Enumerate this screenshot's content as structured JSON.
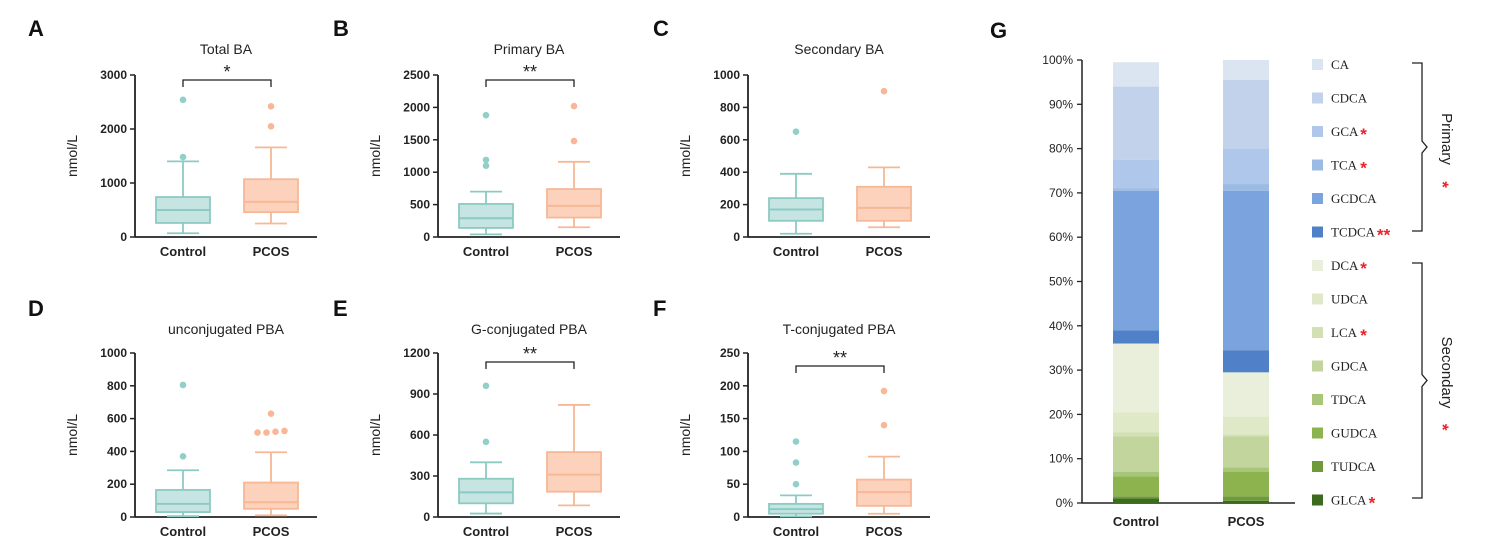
{
  "chart_data": [
    {
      "panel": "A",
      "type": "box",
      "title": "Total  BA",
      "ylabel": "nmol/L",
      "ylim": [
        0,
        3000
      ],
      "yticks": [
        0,
        1000,
        2000,
        3000
      ],
      "categories": [
        "Control",
        "PCOS"
      ],
      "boxes": [
        {
          "q1": 260,
          "median": 500,
          "q3": 740,
          "whisker_low": 70,
          "whisker_high": 1400,
          "outliers": [
            1480,
            2540
          ]
        },
        {
          "q1": 460,
          "median": 650,
          "q3": 1070,
          "whisker_low": 250,
          "whisker_high": 1660,
          "outliers": [
            2050,
            2420
          ]
        }
      ],
      "significance": "*"
    },
    {
      "panel": "B",
      "type": "box",
      "title": "Primary  BA",
      "ylabel": "nmol/L",
      "ylim": [
        0,
        2500
      ],
      "yticks": [
        0,
        500,
        1000,
        1500,
        2000,
        2500
      ],
      "categories": [
        "Control",
        "PCOS"
      ],
      "boxes": [
        {
          "q1": 140,
          "median": 290,
          "q3": 510,
          "whisker_low": 40,
          "whisker_high": 700,
          "outliers": [
            1100,
            1190,
            1880
          ]
        },
        {
          "q1": 300,
          "median": 480,
          "q3": 740,
          "whisker_low": 150,
          "whisker_high": 1160,
          "outliers": [
            1480,
            2020
          ]
        }
      ],
      "significance": "**"
    },
    {
      "panel": "C",
      "type": "box",
      "title": "Secondary  BA",
      "ylabel": "nmol/L",
      "ylim": [
        0,
        1000
      ],
      "yticks": [
        0,
        200,
        400,
        600,
        800,
        1000
      ],
      "categories": [
        "Control",
        "PCOS"
      ],
      "boxes": [
        {
          "q1": 100,
          "median": 170,
          "q3": 240,
          "whisker_low": 20,
          "whisker_high": 390,
          "outliers": [
            650
          ]
        },
        {
          "q1": 100,
          "median": 180,
          "q3": 310,
          "whisker_low": 60,
          "whisker_high": 430,
          "outliers": [
            900
          ]
        }
      ],
      "significance": ""
    },
    {
      "panel": "D",
      "type": "box",
      "title": "unconjugated  PBA",
      "ylabel": "nmol/L",
      "ylim": [
        0,
        1000
      ],
      "yticks": [
        0,
        200,
        400,
        600,
        800,
        1000
      ],
      "categories": [
        "Control",
        "PCOS"
      ],
      "boxes": [
        {
          "q1": 30,
          "median": 80,
          "q3": 165,
          "whisker_low": 5,
          "whisker_high": 285,
          "outliers": [
            370,
            805
          ]
        },
        {
          "q1": 50,
          "median": 90,
          "q3": 210,
          "whisker_low": 10,
          "whisker_high": 395,
          "outliers": [
            515,
            515,
            520,
            525,
            630
          ]
        }
      ],
      "significance": ""
    },
    {
      "panel": "E",
      "type": "box",
      "title": "G-conjugated  PBA",
      "ylabel": "nmol/L",
      "ylim": [
        0,
        1200
      ],
      "yticks": [
        0,
        300,
        600,
        900,
        1200
      ],
      "categories": [
        "Control",
        "PCOS"
      ],
      "boxes": [
        {
          "q1": 100,
          "median": 180,
          "q3": 280,
          "whisker_low": 25,
          "whisker_high": 400,
          "outliers": [
            550,
            960
          ]
        },
        {
          "q1": 185,
          "median": 310,
          "q3": 475,
          "whisker_low": 85,
          "whisker_high": 820,
          "outliers": []
        }
      ],
      "significance": "**"
    },
    {
      "panel": "F",
      "type": "box",
      "title": "T-conjugated  PBA",
      "ylabel": "nmol/L",
      "ylim": [
        0,
        250
      ],
      "yticks": [
        0,
        50,
        100,
        150,
        200,
        250
      ],
      "categories": [
        "Control",
        "PCOS"
      ],
      "boxes": [
        {
          "q1": 5,
          "median": 12,
          "q3": 20,
          "whisker_low": 1,
          "whisker_high": 33,
          "outliers": [
            50,
            83,
            115
          ]
        },
        {
          "q1": 17,
          "median": 38,
          "q3": 57,
          "whisker_low": 5,
          "whisker_high": 92,
          "outliers": [
            140,
            192
          ]
        }
      ],
      "significance": "**"
    },
    {
      "panel": "G",
      "type": "bar",
      "stacked": true,
      "categories": [
        "Control",
        "PCOS"
      ],
      "yticks": [
        "0%",
        "10%",
        "20%",
        "30%",
        "40%",
        "50%",
        "60%",
        "70%",
        "80%",
        "90%",
        "100%"
      ],
      "series": [
        {
          "name": "GLCA",
          "star": "*",
          "color": "#3a6b1e",
          "values": [
            1.0,
            0.5
          ]
        },
        {
          "name": "TUDCA",
          "star": "",
          "color": "#6e9a3c",
          "values": [
            0.5,
            1.0
          ]
        },
        {
          "name": "GUDCA",
          "star": "",
          "color": "#8cb34e",
          "values": [
            4.5,
            5.5
          ]
        },
        {
          "name": "TDCA",
          "star": "",
          "color": "#a8c67a",
          "values": [
            1.0,
            1.0
          ]
        },
        {
          "name": "GDCA",
          "star": "",
          "color": "#c1d59c",
          "values": [
            8.0,
            7.0
          ]
        },
        {
          "name": "LCA",
          "star": "*",
          "color": "#d2e0b4",
          "values": [
            1.0,
            0.5
          ]
        },
        {
          "name": "UDCA",
          "star": "",
          "color": "#dfe8c7",
          "values": [
            4.5,
            4.0
          ]
        },
        {
          "name": "DCA",
          "star": "*",
          "color": "#e9efdb",
          "values": [
            15.5,
            10.0
          ]
        },
        {
          "name": "TCDCA",
          "star": "**",
          "color": "#4f80c8",
          "values": [
            3.0,
            5.0
          ]
        },
        {
          "name": "GCDCA",
          "star": "",
          "color": "#7ba3dd",
          "values": [
            31.5,
            36.0
          ]
        },
        {
          "name": "TCA",
          "star": "*",
          "color": "#9bbbe5",
          "values": [
            0.5,
            1.5
          ]
        },
        {
          "name": "GCA",
          "star": "*",
          "color": "#aec7ea",
          "values": [
            6.5,
            8.0
          ]
        },
        {
          "name": "CDCA",
          "star": "",
          "color": "#c1d2ea",
          "values": [
            16.5,
            15.5
          ]
        },
        {
          "name": "CA",
          "star": "",
          "color": "#dbe5f2",
          "values": [
            5.5,
            4.5
          ]
        }
      ],
      "legend_order": [
        "CA",
        "CDCA",
        "GCA",
        "TCA",
        "GCDCA",
        "TCDCA",
        "DCA",
        "UDCA",
        "LCA",
        "GDCA",
        "TDCA",
        "GUDCA",
        "TUDCA",
        "GLCA"
      ],
      "groups": [
        {
          "label": "Primary",
          "star": "*"
        },
        {
          "label": "Secondary",
          "star": "*"
        }
      ]
    }
  ]
}
